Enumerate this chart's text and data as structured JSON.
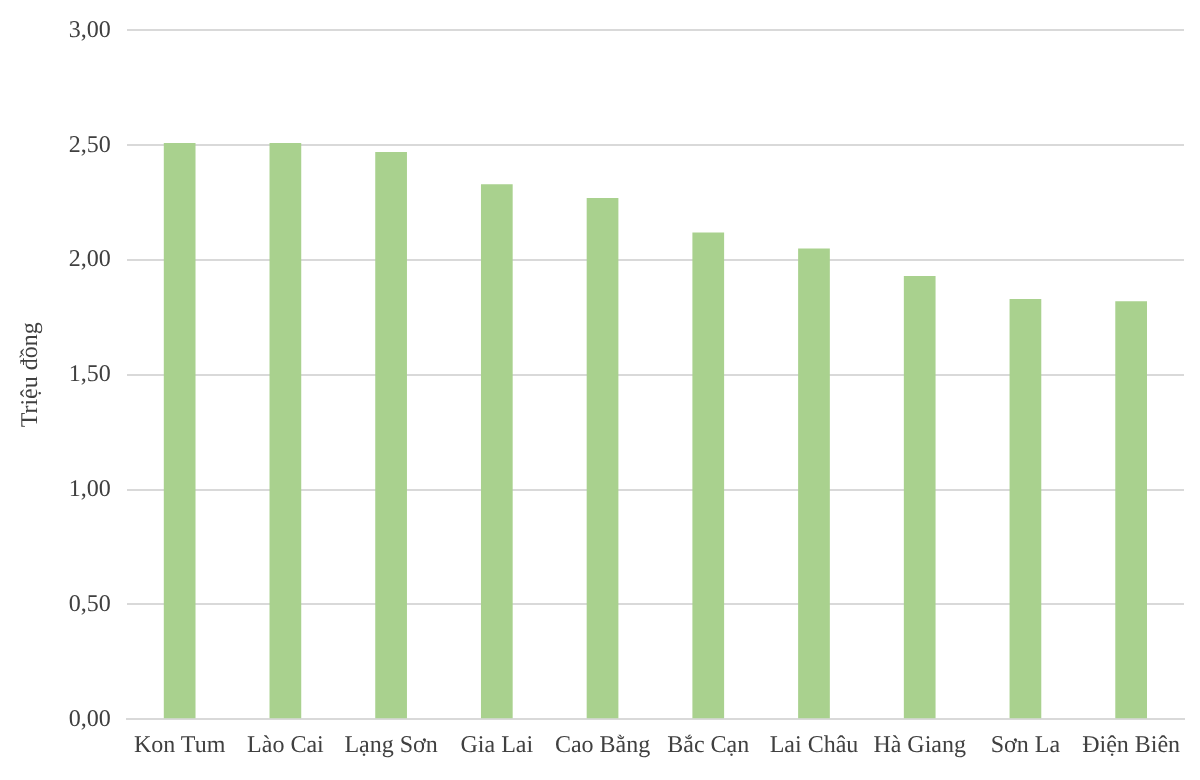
{
  "chart_data": {
    "type": "bar",
    "ylabel": "Triệu đồng",
    "categories": [
      "Kon Tum",
      "Lào Cai",
      "Lạng Sơn",
      "Gia Lai",
      "Cao Bằng",
      "Bắc Cạn",
      "Lai Châu",
      "Hà Giang",
      "Sơn La",
      "Điện Biên"
    ],
    "values": [
      2.51,
      2.51,
      2.47,
      2.33,
      2.27,
      2.12,
      2.05,
      1.93,
      1.83,
      1.82
    ],
    "color": "#a9d18e",
    "ylim": [
      0,
      3
    ],
    "yticks": [
      {
        "value": 0,
        "label": "0,00"
      },
      {
        "value": 0.5,
        "label": "0,50"
      },
      {
        "value": 1,
        "label": "1,00"
      },
      {
        "value": 1.5,
        "label": "1,50"
      },
      {
        "value": 2,
        "label": "2,00"
      },
      {
        "value": 2.5,
        "label": "2,50"
      },
      {
        "value": 3,
        "label": "3,00"
      }
    ],
    "grid": "y"
  }
}
